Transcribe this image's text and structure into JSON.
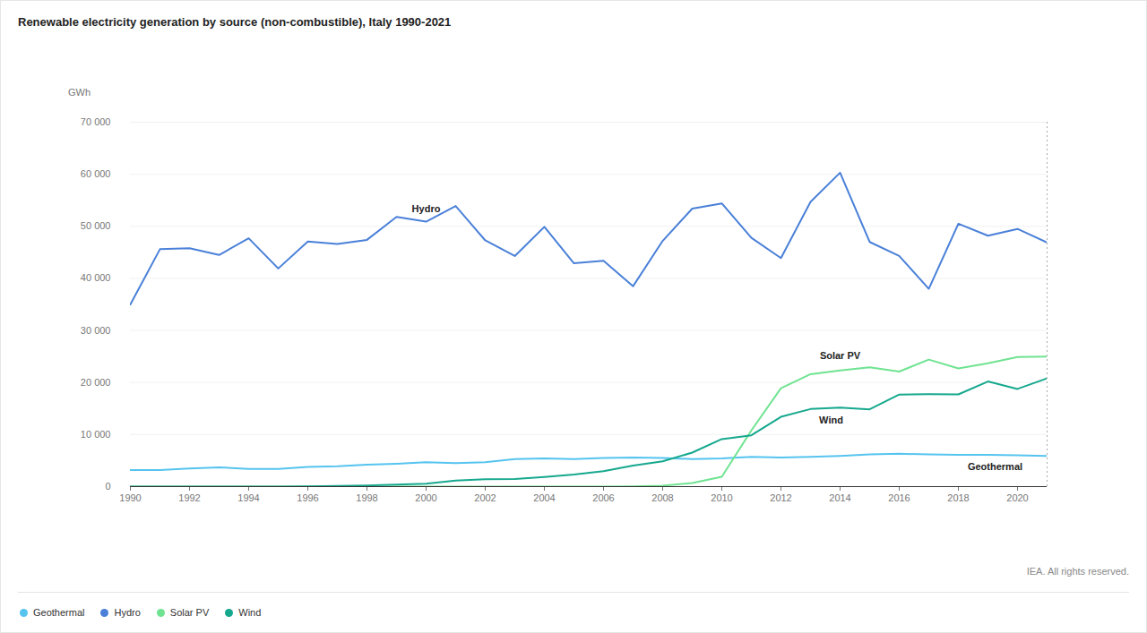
{
  "chart_data": {
    "type": "line",
    "title": "Renewable electricity generation by source (non-combustible), Italy 1990-2021",
    "y_label": "GWh",
    "caption": "IEA. All rights reserved.",
    "x": [
      1990,
      1991,
      1992,
      1993,
      1994,
      1995,
      1996,
      1997,
      1998,
      1999,
      2000,
      2001,
      2002,
      2003,
      2004,
      2005,
      2006,
      2007,
      2008,
      2009,
      2010,
      2011,
      2012,
      2013,
      2014,
      2015,
      2016,
      2017,
      2018,
      2019,
      2020,
      2021
    ],
    "series": [
      {
        "name": "Geothermal",
        "color": "#56c4ef",
        "values": [
          3200,
          3200,
          3500,
          3700,
          3400,
          3400,
          3800,
          3900,
          4200,
          4400,
          4700,
          4500,
          4700,
          5300,
          5400,
          5300,
          5500,
          5600,
          5500,
          5300,
          5400,
          5700,
          5600,
          5700,
          5900,
          6200,
          6300,
          6200,
          6100,
          6100,
          6000,
          5900
        ]
      },
      {
        "name": "Hydro",
        "color": "#4a80d8",
        "values": [
          35000,
          45600,
          45800,
          44500,
          47700,
          41900,
          47100,
          46600,
          47400,
          51800,
          50900,
          53900,
          47300,
          44300,
          49900,
          42900,
          43400,
          38500,
          47200,
          53400,
          54400,
          47800,
          43900,
          54700,
          60300,
          47000,
          44300,
          38000,
          50500,
          48200,
          49500,
          46900
        ]
      },
      {
        "name": "Solar PV",
        "color": "#6fe391",
        "values": [
          0,
          0,
          0,
          0,
          0,
          0,
          0,
          0,
          0,
          0,
          0,
          0,
          0,
          0,
          0,
          0,
          2,
          40,
          190,
          680,
          1900,
          10800,
          18900,
          21600,
          22300,
          22900,
          22100,
          24400,
          22700,
          23700,
          24900,
          25000
        ]
      },
      {
        "name": "Wind",
        "color": "#16a88e",
        "values": [
          0,
          0,
          0,
          0,
          0,
          10,
          30,
          120,
          230,
          400,
          560,
          1180,
          1400,
          1460,
          1850,
          2340,
          2970,
          4030,
          4860,
          6540,
          9130,
          9860,
          13410,
          14900,
          15180,
          14840,
          17690,
          17740,
          17720,
          20200,
          18760,
          20800
        ]
      }
    ],
    "xlim": [
      1990,
      2021
    ],
    "xticks": [
      1990,
      1992,
      1994,
      1996,
      1998,
      2000,
      2002,
      2004,
      2006,
      2008,
      2010,
      2012,
      2014,
      2016,
      2018,
      2020
    ],
    "ylim": [
      0,
      70000
    ],
    "yticks": [
      0,
      {
        "value": 10000,
        "label": "10 000"
      },
      {
        "value": 20000,
        "label": "20 000"
      },
      {
        "value": 30000,
        "label": "30 000"
      },
      {
        "value": 40000,
        "label": "40 000"
      },
      {
        "value": 50000,
        "label": "50 000"
      },
      {
        "value": 60000,
        "label": "60 000"
      },
      {
        "value": 70000,
        "label": "70 000"
      }
    ],
    "grid": true,
    "legend": "bottom"
  }
}
